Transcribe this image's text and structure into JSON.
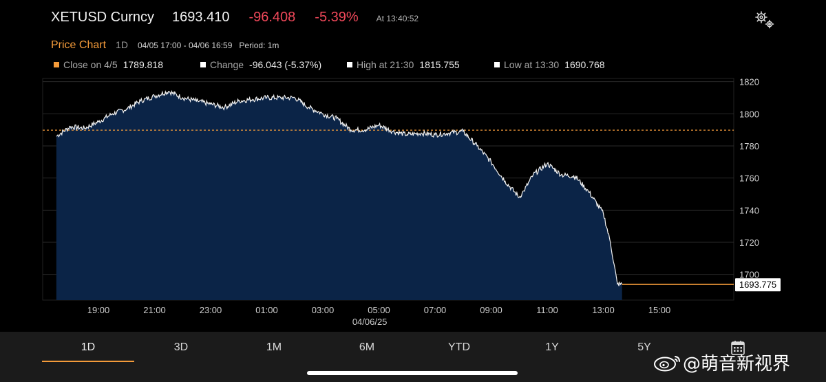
{
  "header": {
    "ticker": "XETUSD Curncy",
    "price": "1693.410",
    "change": "-96.408",
    "change_pct": "-5.39%",
    "as_of": "At 13:40:52",
    "settings_icon": "gear-icon"
  },
  "chart_header": {
    "title": "Price Chart",
    "range": "1D",
    "date_range": "04/05 17:00 - 04/06 16:59",
    "period": "Period: 1m"
  },
  "legend": {
    "close_label": "Close on 4/5",
    "close_value": "1789.818",
    "change_label": "Change",
    "change_value": "-96.043 (-5.37%)",
    "high_label": "High at 21:30",
    "high_value": "1815.755",
    "low_label": "Low at 13:30",
    "low_value": "1690.768",
    "close_color": "#f49b3a",
    "marker_color": "#ffffff"
  },
  "colors": {
    "accent": "#f49b3a",
    "negative": "#f0485a",
    "area_fill": "#0b2447",
    "line": "#f2f2f2",
    "grid": "#2a2a2a",
    "background": "#000000"
  },
  "chart_data": {
    "type": "area",
    "title": "Price Chart",
    "x_ticks": [
      "19:00",
      "21:00",
      "23:00",
      "01:00",
      "03:00",
      "05:00",
      "07:00",
      "09:00",
      "11:00",
      "13:00",
      "15:00"
    ],
    "date_label": "04/06/25",
    "y_ticks": [
      1700,
      1720,
      1740,
      1760,
      1780,
      1800,
      1820
    ],
    "ylim": [
      1684,
      1822
    ],
    "x_range_hours": [
      17.5,
      16.99
    ],
    "reference_line": {
      "label": "Close on 4/5",
      "value": 1789.818
    },
    "last_value_label": "1693.775",
    "last_value": 1693.775,
    "series": [
      {
        "x": [
          "17:30",
          "18:00",
          "18:30",
          "19:00",
          "19:30",
          "20:00",
          "20:30",
          "21:00",
          "21:30",
          "22:00",
          "22:30",
          "23:00",
          "23:30",
          "00:00",
          "00:30",
          "01:00",
          "01:30",
          "02:00",
          "02:30",
          "03:00",
          "03:30",
          "04:00",
          "04:30",
          "05:00",
          "05:30",
          "06:00",
          "06:30",
          "07:00",
          "07:30",
          "08:00",
          "08:30",
          "09:00",
          "09:30",
          "10:00",
          "10:10",
          "10:30",
          "11:00",
          "11:30",
          "12:00",
          "12:30",
          "13:00",
          "13:15",
          "13:30",
          "13:40"
        ],
        "values": [
          1786,
          1792,
          1791,
          1795,
          1800,
          1803,
          1808,
          1811,
          1814,
          1810,
          1808,
          1806,
          1804,
          1808,
          1809,
          1810,
          1810,
          1810,
          1804,
          1800,
          1797,
          1790,
          1790,
          1793,
          1789,
          1787,
          1788,
          1787,
          1788,
          1789,
          1780,
          1770,
          1758,
          1748,
          1752,
          1762,
          1769,
          1762,
          1761,
          1751,
          1738,
          1720,
          1694,
          1693.775
        ]
      }
    ],
    "grid": true
  },
  "tabs": [
    "1D",
    "3D",
    "1M",
    "6M",
    "YTD",
    "1Y",
    "5Y"
  ],
  "active_tab": "1D",
  "calendar_icon": "calendar-icon",
  "watermark": {
    "handle": "@萌音新视界",
    "icon": "weibo-icon"
  }
}
